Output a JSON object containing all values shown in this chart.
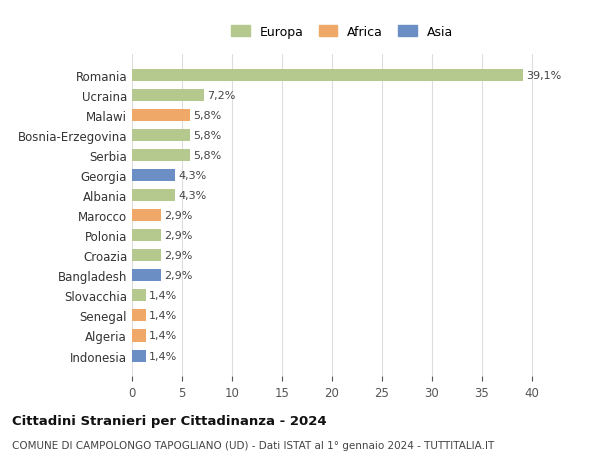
{
  "countries": [
    "Romania",
    "Ucraina",
    "Malawi",
    "Bosnia-Erzegovina",
    "Serbia",
    "Georgia",
    "Albania",
    "Marocco",
    "Polonia",
    "Croazia",
    "Bangladesh",
    "Slovacchia",
    "Senegal",
    "Algeria",
    "Indonesia"
  ],
  "values": [
    39.1,
    7.2,
    5.8,
    5.8,
    5.8,
    4.3,
    4.3,
    2.9,
    2.9,
    2.9,
    2.9,
    1.4,
    1.4,
    1.4,
    1.4
  ],
  "labels": [
    "39,1%",
    "7,2%",
    "5,8%",
    "5,8%",
    "5,8%",
    "4,3%",
    "4,3%",
    "2,9%",
    "2,9%",
    "2,9%",
    "2,9%",
    "1,4%",
    "1,4%",
    "1,4%",
    "1,4%"
  ],
  "continents": [
    "Europa",
    "Europa",
    "Africa",
    "Europa",
    "Europa",
    "Asia",
    "Europa",
    "Africa",
    "Europa",
    "Europa",
    "Asia",
    "Europa",
    "Africa",
    "Africa",
    "Asia"
  ],
  "colors": {
    "Europa": "#b5c98e",
    "Africa": "#f0a868",
    "Asia": "#6b8fc4"
  },
  "legend_colors": {
    "Europa": "#b5c98e",
    "Africa": "#f0a868",
    "Asia": "#6b8fc4"
  },
  "xlim": [
    0,
    42
  ],
  "xticks": [
    0,
    5,
    10,
    15,
    20,
    25,
    30,
    35,
    40
  ],
  "title": "Cittadini Stranieri per Cittadinanza - 2024",
  "subtitle": "COMUNE DI CAMPOLONGO TAPOGLIANO (UD) - Dati ISTAT al 1° gennaio 2024 - TUTTITALIA.IT",
  "bg_color": "#ffffff",
  "grid_color": "#dddddd",
  "bar_height": 0.6
}
